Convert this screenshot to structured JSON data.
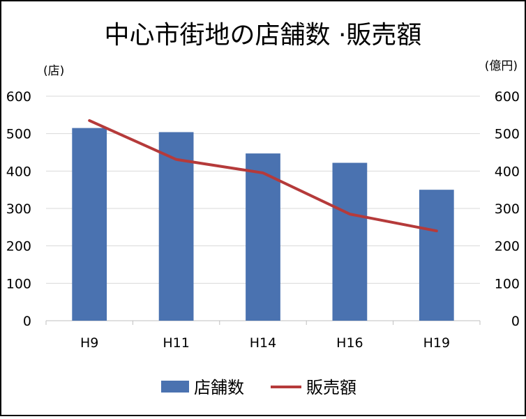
{
  "chart_data": {
    "type": "bar",
    "title": "中心市街地の店舗数 ·販売額",
    "categories": [
      "H9",
      "H11",
      "H14",
      "H16",
      "H19"
    ],
    "series": [
      {
        "name": "店舗数",
        "type": "bar",
        "axis": "left",
        "color": "#4a72b0",
        "values": [
          515,
          504,
          447,
          422,
          350
        ]
      },
      {
        "name": "販売額",
        "type": "line",
        "axis": "right",
        "color": "#b53a3a",
        "values": [
          535,
          431,
          395,
          285,
          240
        ]
      }
    ],
    "y_left": {
      "unit_label": "(店)",
      "ylim": [
        0,
        600
      ],
      "ticks": [
        0,
        100,
        200,
        300,
        400,
        500,
        600
      ]
    },
    "y_right": {
      "unit_label": "(億円)",
      "ylim": [
        0,
        600
      ],
      "ticks": [
        0,
        100,
        200,
        300,
        400,
        500,
        600
      ]
    },
    "grid": true,
    "legend_position": "bottom"
  }
}
